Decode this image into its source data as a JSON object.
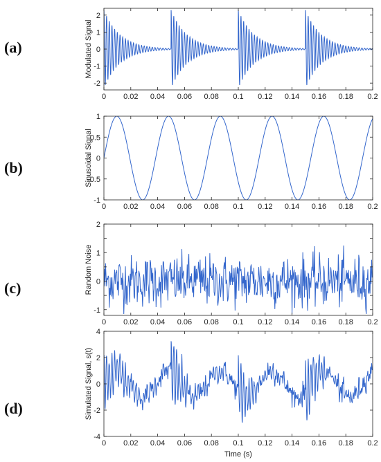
{
  "panel_labels": [
    "(a)",
    "(b)",
    "(c)",
    "(d)"
  ],
  "colors": {
    "line": "#3366cc",
    "axis": "#222222"
  },
  "chart_data": [
    {
      "type": "line",
      "ylabel": "Modulated Signal",
      "xlim": [
        0,
        0.2
      ],
      "ylim": [
        -2.4,
        2.4
      ],
      "yticks": [
        -2,
        -1,
        0,
        1,
        2
      ],
      "xticks": [
        0,
        0.02,
        0.04,
        0.06,
        0.08,
        0.1,
        0.12,
        0.14,
        0.16,
        0.18,
        0.2
      ],
      "series": [
        {
          "kind": "decaying_burst",
          "amplitude": 2.3,
          "burst_starts": [
            0,
            0.05,
            0.1,
            0.15
          ],
          "decay_time_constant": 0.012,
          "oscillation_frequency_hz": 500
        }
      ]
    },
    {
      "type": "line",
      "ylabel": "Sinusoidal Signal",
      "xlim": [
        0,
        0.2
      ],
      "ylim": [
        -1,
        1
      ],
      "yticks": [
        -1,
        -0.5,
        0,
        0.5,
        1
      ],
      "xticks": [
        0,
        0.02,
        0.04,
        0.06,
        0.08,
        0.1,
        0.12,
        0.14,
        0.16,
        0.18,
        0.2
      ],
      "series": [
        {
          "kind": "sine",
          "amplitude": 1,
          "period": 0.0385
        }
      ]
    },
    {
      "type": "line",
      "ylabel": "Random Noise",
      "xlim": [
        0,
        0.2
      ],
      "ylim": [
        -1.2,
        2
      ],
      "yticks": [
        -1,
        -0.5,
        0,
        0.5,
        1,
        1.5,
        2
      ],
      "yticklabels": [
        "-1",
        "",
        "0",
        "",
        "1",
        "",
        "2"
      ],
      "xticks": [
        0,
        0.02,
        0.04,
        0.06,
        0.08,
        0.1,
        0.12,
        0.14,
        0.16,
        0.18,
        0.2
      ],
      "series": [
        {
          "kind": "noise",
          "std": 0.45,
          "samples": 500
        }
      ]
    },
    {
      "type": "line",
      "ylabel": "Simulated Signal, s(t)",
      "xlabel": "Time (s)",
      "xlim": [
        0,
        0.2
      ],
      "ylim": [
        -4,
        4
      ],
      "yticks": [
        -4,
        -2,
        0,
        2,
        4
      ],
      "xticks": [
        0,
        0.02,
        0.04,
        0.06,
        0.08,
        0.1,
        0.12,
        0.14,
        0.16,
        0.18,
        0.2
      ],
      "series": [
        {
          "kind": "sum",
          "components": [
            "Modulated Signal",
            "Sinusoidal Signal",
            "Random Noise"
          ]
        }
      ]
    }
  ]
}
